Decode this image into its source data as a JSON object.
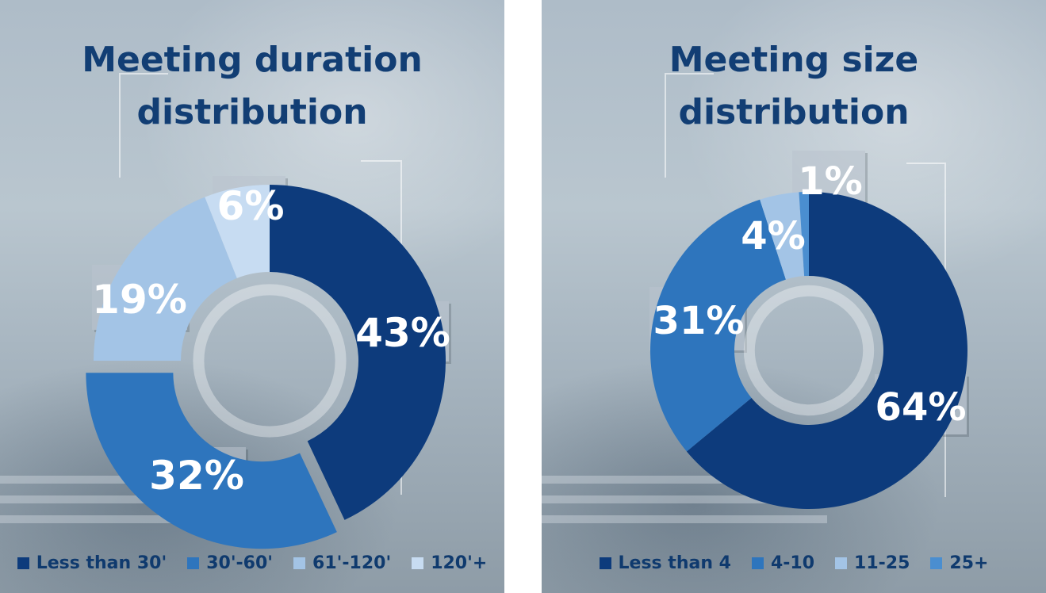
{
  "chart_data": [
    {
      "type": "donut",
      "title": "Meeting duration distribution",
      "categories": [
        "Less than 30'",
        "30'-60'",
        "61'-120'",
        "120'+"
      ],
      "values": [
        43,
        32,
        19,
        6
      ],
      "labels": [
        "43%",
        "32%",
        "19%",
        "6%"
      ],
      "colors": [
        "#0d3b7c",
        "#2e75bd",
        "#a3c4e6",
        "#c7dcf2"
      ],
      "legend_position": "bottom",
      "legend": [
        {
          "label": "Less than 30'",
          "color": "#0d3b7c"
        },
        {
          "label": "30'-60'",
          "color": "#2e75bd"
        },
        {
          "label": "61'-120'",
          "color": "#a3c4e6"
        },
        {
          "label": "120'+",
          "color": "#c7dcf2"
        }
      ]
    },
    {
      "type": "donut",
      "title": "Meeting size distribution",
      "categories": [
        "Less than 4",
        "4-10",
        "11-25",
        "25+"
      ],
      "values": [
        64,
        31,
        4,
        1
      ],
      "labels": [
        "64%",
        "31%",
        "4%",
        "1%"
      ],
      "colors": [
        "#0d3b7c",
        "#2e75bd",
        "#a3c4e6",
        "#4a8ed0"
      ],
      "legend_position": "bottom",
      "legend": [
        {
          "label": "Less than 4",
          "color": "#0d3b7c"
        },
        {
          "label": "4-10",
          "color": "#2e75bd"
        },
        {
          "label": "11-25",
          "color": "#a3c4e6"
        },
        {
          "label": "25+",
          "color": "#4a8ed0"
        }
      ]
    }
  ],
  "panels": [
    {
      "title_line1": "Meeting duration",
      "title_line2": "distribution"
    },
    {
      "title_line1": "Meeting size",
      "title_line2": "distribution"
    }
  ]
}
